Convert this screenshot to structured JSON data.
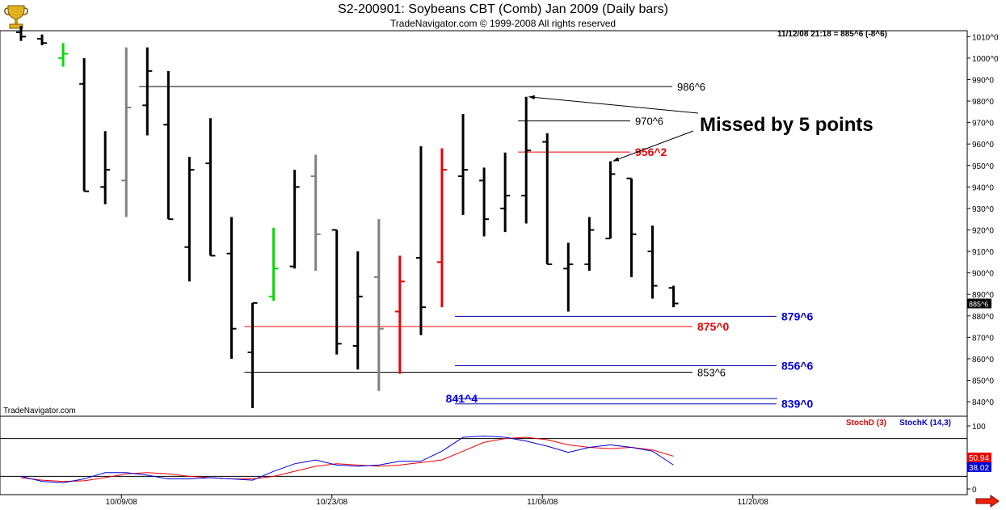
{
  "title": "S2-200901:  Soybeans CBT (Comb) Jan 2009  (Daily bars)",
  "subtitle": "TradeNavigator.com © 1999-2008 All rights reserved",
  "info_line": "11/12/08 21:18 = 885^6 (-8^6)",
  "watermark": "TradeNavigator.com",
  "current_price_label": "885^6",
  "icons": {
    "logo": "gold-trophy-logo-icon",
    "scroll": "red-right-arrow-icon"
  },
  "colors": {
    "up_bar": "#00dd00",
    "down_bar": "#000000",
    "neutral_bar": "#808080",
    "red_bar": "#ee0000",
    "stoch_d": "#dd0000",
    "stoch_k": "#0000cc",
    "label_blue": "#0000dd",
    "label_red": "#ee0000"
  },
  "chart_data": [
    {
      "type": "bar",
      "subtype": "ohlc",
      "ylim": [
        834,
        1012
      ],
      "y_ticks": [
        "840^0",
        "850^0",
        "860^0",
        "870^0",
        "880^0",
        "890^0",
        "900^0",
        "910^0",
        "920^0",
        "930^0",
        "940^0",
        "950^0",
        "960^0",
        "970^0",
        "980^0",
        "990^0",
        "1000^0",
        "1010^0"
      ],
      "y_tick_values": [
        840,
        850,
        860,
        870,
        880,
        890,
        900,
        910,
        920,
        930,
        940,
        950,
        960,
        970,
        980,
        990,
        1000,
        1010
      ],
      "x_ticks": [
        {
          "label": "10/09/08",
          "bar": 5
        },
        {
          "label": "10/23/08",
          "bar": 15
        },
        {
          "label": "11/06/08",
          "bar": 25
        },
        {
          "label": "11/20/08",
          "bar": 35
        }
      ],
      "bars": [
        {
          "date": "10/01/08",
          "open": 1012,
          "high": 1015,
          "low": 1008,
          "close": 1010,
          "color": "black"
        },
        {
          "date": "10/02/08",
          "open": 1009,
          "high": 1011,
          "low": 1006,
          "close": 1007,
          "color": "black"
        },
        {
          "date": "10/03/08",
          "open": 1000,
          "high": 1007,
          "low": 996,
          "close": 1002,
          "color": "green"
        },
        {
          "date": "10/06/08",
          "open": 988,
          "high": 1000,
          "low": 938,
          "close": 938,
          "color": "black"
        },
        {
          "date": "10/07/08",
          "open": 940,
          "high": 966,
          "low": 932,
          "close": 948,
          "color": "black"
        },
        {
          "date": "10/08/08",
          "open": 943,
          "high": 1005,
          "low": 926,
          "close": 977,
          "color": "gray"
        },
        {
          "date": "10/09/08",
          "open": 978,
          "high": 1005,
          "low": 964,
          "close": 994,
          "color": "black"
        },
        {
          "date": "10/10/08",
          "open": 969,
          "high": 994,
          "low": 925,
          "close": 925,
          "color": "black"
        },
        {
          "date": "10/13/08",
          "open": 912,
          "high": 954,
          "low": 896,
          "close": 948,
          "color": "black"
        },
        {
          "date": "10/14/08",
          "open": 951,
          "high": 972,
          "low": 908,
          "close": 908,
          "color": "black"
        },
        {
          "date": "10/15/08",
          "open": 909,
          "high": 926,
          "low": 860,
          "close": 874,
          "color": "black"
        },
        {
          "date": "10/16/08",
          "open": 863,
          "high": 886,
          "low": 837,
          "close": 886,
          "color": "black"
        },
        {
          "date": "10/17/08",
          "open": 889,
          "high": 921,
          "low": 887,
          "close": 902,
          "color": "green"
        },
        {
          "date": "10/20/08",
          "open": 903,
          "high": 948,
          "low": 902,
          "close": 940,
          "color": "black"
        },
        {
          "date": "10/21/08",
          "open": 945,
          "high": 955,
          "low": 901,
          "close": 918,
          "color": "gray"
        },
        {
          "date": "10/22/08",
          "open": 920,
          "high": 920,
          "low": 862,
          "close": 867,
          "color": "black"
        },
        {
          "date": "10/23/08",
          "open": 866,
          "high": 910,
          "low": 855,
          "close": 889,
          "color": "black"
        },
        {
          "date": "10/24/08",
          "open": 898,
          "high": 925,
          "low": 845,
          "close": 874,
          "color": "gray"
        },
        {
          "date": "10/27/08",
          "open": 882,
          "high": 908,
          "low": 853,
          "close": 896,
          "color": "red"
        },
        {
          "date": "10/28/08",
          "open": 907,
          "high": 959,
          "low": 871,
          "close": 884,
          "color": "black"
        },
        {
          "date": "10/29/08",
          "open": 905,
          "high": 958,
          "low": 884,
          "close": 948,
          "color": "red"
        },
        {
          "date": "10/30/08",
          "open": 945,
          "high": 974,
          "low": 927,
          "close": 948,
          "color": "black"
        },
        {
          "date": "10/31/08",
          "open": 943,
          "high": 949,
          "low": 917,
          "close": 925,
          "color": "black"
        },
        {
          "date": "11/03/08",
          "open": 930,
          "high": 956,
          "low": 919,
          "close": 936,
          "color": "black"
        },
        {
          "date": "11/04/08",
          "open": 936,
          "high": 982,
          "low": 923,
          "close": 957,
          "color": "black"
        },
        {
          "date": "11/05/08",
          "open": 961,
          "high": 965,
          "low": 904,
          "close": 904,
          "color": "black"
        },
        {
          "date": "11/06/08",
          "open": 902,
          "high": 914,
          "low": 882,
          "close": 904,
          "color": "black"
        },
        {
          "date": "11/07/08",
          "open": 904,
          "high": 926,
          "low": 901,
          "close": 920,
          "color": "black"
        },
        {
          "date": "11/10/08",
          "open": 916,
          "high": 952,
          "low": 916,
          "close": 946,
          "color": "black"
        },
        {
          "date": "11/11/08",
          "open": 944,
          "high": 944,
          "low": 898,
          "close": 918,
          "color": "black"
        },
        {
          "date": "11/12/08",
          "open": 910,
          "high": 922,
          "low": 888,
          "close": 894,
          "color": "black"
        },
        {
          "date": "11/13/08",
          "open": 893,
          "high": 894,
          "low": 884,
          "close": 885.75,
          "color": "black"
        }
      ],
      "levels": [
        {
          "label": "986^6",
          "value": 986.75,
          "color": "black",
          "from_bar": 6
        },
        {
          "label": "970^6",
          "value": 970.75,
          "color": "black",
          "from_bar": 24
        },
        {
          "label": "956^2",
          "value": 956.25,
          "color": "red",
          "from_bar": 24
        },
        {
          "label": "879^6",
          "value": 879.75,
          "color": "blue",
          "from_bar": 21
        },
        {
          "label": "875^0",
          "value": 875.0,
          "color": "red",
          "from_bar": 11
        },
        {
          "label": "856^6",
          "value": 856.75,
          "color": "blue",
          "from_bar": 21
        },
        {
          "label": "853^6",
          "value": 853.75,
          "color": "black",
          "from_bar": 11
        },
        {
          "label": "841^4",
          "value": 841.5,
          "color": "blue",
          "from_bar": 21
        },
        {
          "label": "839^0",
          "value": 839.0,
          "color": "blue",
          "from_bar": 21
        }
      ],
      "annotation": {
        "text": "Missed by 5 points",
        "arrows_to": [
          {
            "bar": 24,
            "value": 982
          },
          {
            "bar": 28,
            "value": 952
          }
        ]
      }
    },
    {
      "type": "line",
      "ylim": [
        0,
        100
      ],
      "y_ticks": [
        "0",
        "100"
      ],
      "y_tick_values": [
        0,
        100
      ],
      "bands": [
        20,
        80
      ],
      "legend_position": "top-right",
      "series": [
        {
          "name": "StochD (3)",
          "color": "red",
          "last_label": "50.94",
          "values": [
            18,
            14,
            12,
            13,
            18,
            24,
            26,
            24,
            20,
            18,
            16,
            16,
            20,
            28,
            36,
            40,
            38,
            36,
            38,
            42,
            46,
            60,
            74,
            80,
            82,
            78,
            70,
            66,
            64,
            66,
            62,
            52
          ]
        },
        {
          "name": "StochK (14,3)",
          "color": "blue",
          "last_label": "38.02",
          "values": [
            20,
            12,
            10,
            16,
            26,
            26,
            22,
            16,
            16,
            18,
            16,
            14,
            28,
            40,
            46,
            38,
            36,
            38,
            44,
            44,
            60,
            82,
            84,
            82,
            76,
            68,
            58,
            66,
            70,
            66,
            60,
            38
          ]
        }
      ]
    }
  ]
}
